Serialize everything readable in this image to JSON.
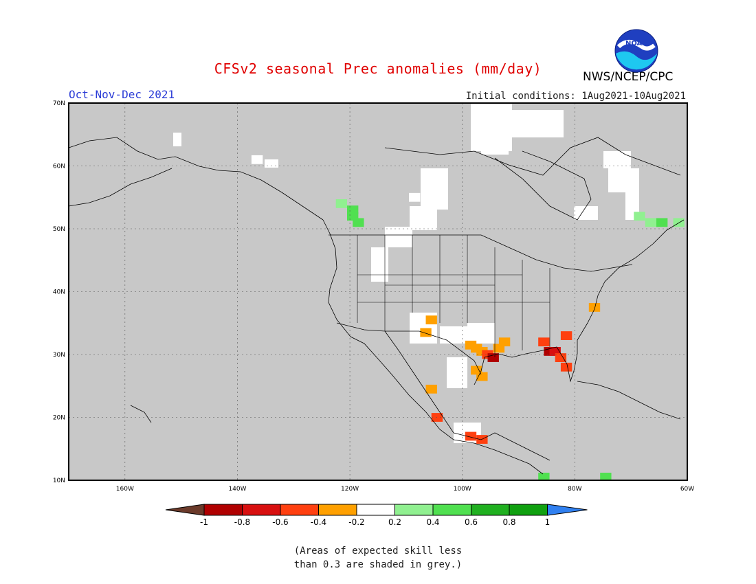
{
  "header": {
    "title": "CFSv2 seasonal Prec anomalies (mm/day)",
    "period": "Oct-Nov-Dec 2021",
    "initial_conditions": "Initial conditions: 1Aug2021-10Aug2021",
    "agency": "NWS/NCEP/CPC",
    "logo_text": "NOAA"
  },
  "map": {
    "region": "North America",
    "lon_range": [
      -170,
      -60
    ],
    "lat_range": [
      10,
      70
    ],
    "ocean_color": "#c8c8c8",
    "lat_labels": [
      "70N",
      "60N",
      "50N",
      "40N",
      "30N",
      "20N",
      "10N"
    ],
    "lon_labels": [
      "160W",
      "140W",
      "120W",
      "100W",
      "80W",
      "60W"
    ],
    "gridlines": true,
    "anomaly_cells": [
      {
        "lon": -136.5,
        "lat": 61.0,
        "level": "neutral"
      },
      {
        "lon": -121.5,
        "lat": 54.0,
        "level": "wet1"
      },
      {
        "lon": -119.5,
        "lat": 53.0,
        "level": "wet2"
      },
      {
        "lon": -119.5,
        "lat": 52.0,
        "level": "wet2"
      },
      {
        "lon": -118.5,
        "lat": 51.0,
        "level": "wet2"
      },
      {
        "lon": -108.5,
        "lat": 55.0,
        "level": "neutral"
      },
      {
        "lon": -107.5,
        "lat": 52.0,
        "level": "neutral"
      },
      {
        "lon": -68.5,
        "lat": 52.0,
        "level": "wet1"
      },
      {
        "lon": -66.5,
        "lat": 51.0,
        "level": "wet1"
      },
      {
        "lon": -64.5,
        "lat": 51.0,
        "level": "wet2"
      },
      {
        "lon": -61.5,
        "lat": 51.0,
        "level": "wet1"
      },
      {
        "lon": -105.5,
        "lat": 35.5,
        "level": "dry2"
      },
      {
        "lon": -106.5,
        "lat": 33.5,
        "level": "dry2"
      },
      {
        "lon": -98.5,
        "lat": 31.5,
        "level": "dry2"
      },
      {
        "lon": -97.5,
        "lat": 31.0,
        "level": "dry2"
      },
      {
        "lon": -96.5,
        "lat": 30.5,
        "level": "dry2"
      },
      {
        "lon": -95.5,
        "lat": 30.0,
        "level": "dry3"
      },
      {
        "lon": -94.5,
        "lat": 29.5,
        "level": "dry5"
      },
      {
        "lon": -93.5,
        "lat": 31.0,
        "level": "dry2"
      },
      {
        "lon": -92.5,
        "lat": 32.0,
        "level": "dry2"
      },
      {
        "lon": -96.5,
        "lat": 26.5,
        "level": "dry2"
      },
      {
        "lon": -97.5,
        "lat": 27.5,
        "level": "dry2"
      },
      {
        "lon": -85.5,
        "lat": 32.0,
        "level": "dry3"
      },
      {
        "lon": -84.5,
        "lat": 30.5,
        "level": "dry5"
      },
      {
        "lon": -83.5,
        "lat": 30.5,
        "level": "dry4"
      },
      {
        "lon": -82.5,
        "lat": 29.5,
        "level": "dry3"
      },
      {
        "lon": -81.5,
        "lat": 28.0,
        "level": "dry3"
      },
      {
        "lon": -81.5,
        "lat": 33.0,
        "level": "dry3"
      },
      {
        "lon": -76.5,
        "lat": 37.5,
        "level": "dry2"
      },
      {
        "lon": -105.5,
        "lat": 24.5,
        "level": "dry2"
      },
      {
        "lon": -98.5,
        "lat": 17.0,
        "level": "dry3"
      },
      {
        "lon": -96.5,
        "lat": 16.5,
        "level": "dry3"
      },
      {
        "lon": -104.5,
        "lat": 20.0,
        "level": "dry3"
      },
      {
        "lon": -85.5,
        "lat": 10.5,
        "level": "wet2"
      },
      {
        "lon": -74.5,
        "lat": 10.5,
        "level": "wet2"
      }
    ]
  },
  "colorbar": {
    "tick_labels": [
      "-1",
      "-0.8",
      "-0.6",
      "-0.4",
      "-0.2",
      "0.2",
      "0.4",
      "0.6",
      "0.8",
      "1"
    ],
    "colors": {
      "below_min": "#6b3a2a",
      "dry5": "#b00000",
      "dry4": "#d81010",
      "dry3": "#ff4010",
      "dry2": "#ffa000",
      "neutral": "#ffffff",
      "wet1": "#90f090",
      "wet2": "#50e050",
      "wet3": "#20b020",
      "wet4": "#10a010",
      "above_max": "#3080f0"
    },
    "order": [
      "dry5",
      "dry4",
      "dry3",
      "dry2",
      "neutral",
      "wet1",
      "wet2",
      "wet3",
      "wet4"
    ]
  },
  "footnote": {
    "line1": "(Areas of expected skill less",
    "line2": "than 0.3 are shaded in grey.)"
  }
}
